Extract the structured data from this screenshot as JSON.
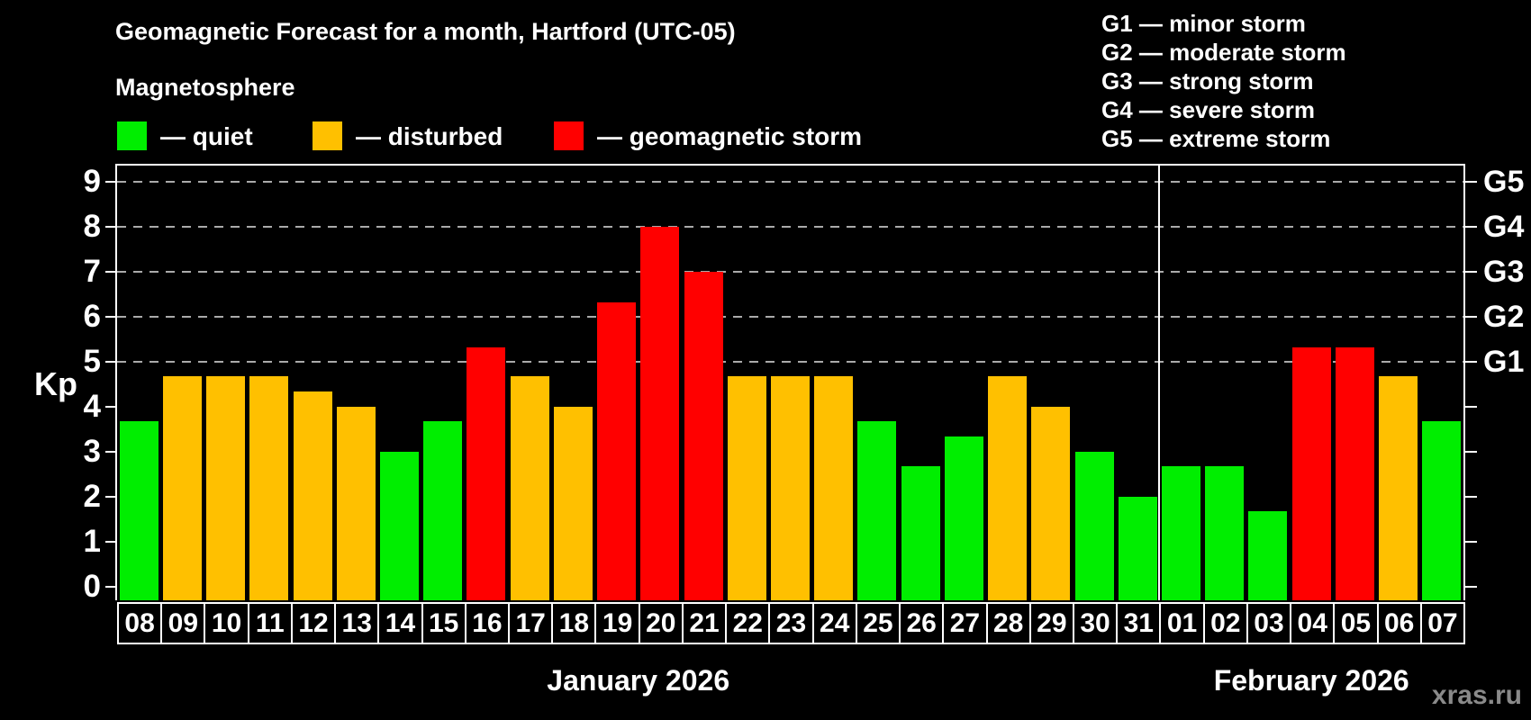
{
  "legend": {
    "items": [
      {
        "status": "quiet",
        "label": "— quiet"
      },
      {
        "status": "disturbed",
        "label": "— disturbed"
      },
      {
        "status": "storm",
        "label": "— geomagnetic storm"
      }
    ]
  },
  "g_scale_legend": {
    "items": [
      "G1 — minor storm",
      "G2 — moderate storm",
      "G3 — strong storm",
      "G4 — severe storm",
      "G5 — extreme storm"
    ]
  },
  "colors": {
    "quiet": "#00ee00",
    "disturbed": "#ffc000",
    "storm": "#ff0000",
    "grid": "#aaaaaa",
    "axis": "#ffffff",
    "watermark": "#8a8a8a",
    "background": "#000000"
  },
  "watermark": "xras.ru",
  "chart_data": {
    "type": "bar",
    "title": "Geomagnetic Forecast for a month, Hartford (UTC-05)",
    "subtitle": "Magnetosphere",
    "ylabel": "Kp",
    "ylim": [
      0,
      9
    ],
    "y_ticks": [
      0,
      1,
      2,
      3,
      4,
      5,
      6,
      7,
      8,
      9
    ],
    "gridline_levels": [
      5,
      6,
      7,
      8,
      9
    ],
    "grid": "dashed, only at storm levels G1–G5",
    "legend_position": "top",
    "right_axis": [
      {
        "label": "G1",
        "kp": 5
      },
      {
        "label": "G2",
        "kp": 6
      },
      {
        "label": "G3",
        "kp": 7
      },
      {
        "label": "G4",
        "kp": 8
      },
      {
        "label": "G5",
        "kp": 9
      }
    ],
    "categories": [
      "08",
      "09",
      "10",
      "11",
      "12",
      "13",
      "14",
      "15",
      "16",
      "17",
      "18",
      "19",
      "20",
      "21",
      "22",
      "23",
      "24",
      "25",
      "26",
      "27",
      "28",
      "29",
      "30",
      "31",
      "01",
      "02",
      "03",
      "04",
      "05",
      "06",
      "07"
    ],
    "values": [
      3.67,
      4.67,
      4.67,
      4.67,
      4.33,
      4.0,
      3.0,
      3.67,
      5.33,
      4.67,
      4.0,
      6.33,
      8.0,
      7.0,
      4.67,
      4.67,
      4.67,
      3.67,
      2.67,
      3.33,
      4.67,
      4.0,
      3.0,
      2.0,
      2.67,
      2.67,
      1.67,
      5.33,
      5.33,
      4.67,
      3.67
    ],
    "statuses": [
      "quiet",
      "disturbed",
      "disturbed",
      "disturbed",
      "disturbed",
      "disturbed",
      "quiet",
      "quiet",
      "storm",
      "disturbed",
      "disturbed",
      "storm",
      "storm",
      "storm",
      "disturbed",
      "disturbed",
      "disturbed",
      "quiet",
      "quiet",
      "quiet",
      "disturbed",
      "disturbed",
      "quiet",
      "quiet",
      "quiet",
      "quiet",
      "quiet",
      "storm",
      "storm",
      "disturbed",
      "quiet"
    ],
    "months": [
      {
        "label": "January 2026",
        "day_count": 24
      },
      {
        "label": "February 2026",
        "day_count": 7
      }
    ]
  }
}
